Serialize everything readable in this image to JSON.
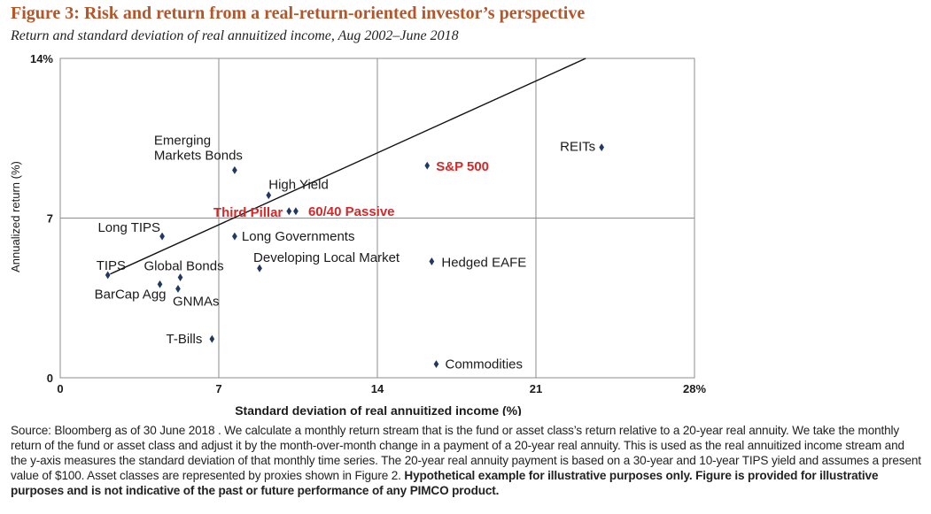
{
  "header": {
    "title": "Figure 3: Risk and return from a real-return-oriented investor’s perspective",
    "subtitle": "Return and standard deviation of real annuitized income, Aug 2002–June 2018"
  },
  "colors": {
    "title": "#b5562a",
    "marker": "#1f3864",
    "highlight_label": "#d62828",
    "grid": "#8c8c8c",
    "axis_text": "#1a1a1a"
  },
  "chart_data": {
    "type": "scatter",
    "xlabel": "Standard deviation of real annuitized income (%)",
    "ylabel": "Annualized return (%)",
    "xlim": [
      0,
      28
    ],
    "ylim": [
      0,
      14
    ],
    "x_ticks": [
      {
        "value": 0,
        "label": "0"
      },
      {
        "value": 7,
        "label": "7"
      },
      {
        "value": 14,
        "label": "14"
      },
      {
        "value": 21,
        "label": "21"
      },
      {
        "value": 28,
        "label": "28%"
      }
    ],
    "y_ticks": [
      {
        "value": 0,
        "label": "0"
      },
      {
        "value": 7,
        "label": "7"
      },
      {
        "value": 14,
        "label": "14%"
      }
    ],
    "grid": true,
    "trend_line": {
      "x": [
        2.1,
        23.2
      ],
      "y": [
        4.5,
        14.0
      ]
    },
    "points": [
      {
        "name": "REITs",
        "x": 23.9,
        "y": 10.1,
        "highlight": false,
        "label_anchor": "end",
        "label_dx": -7,
        "label_dy": 4
      },
      {
        "name": "S&P 500",
        "x": 16.2,
        "y": 9.3,
        "highlight": true,
        "label_anchor": "start",
        "label_dx": 10,
        "label_dy": 6
      },
      {
        "name": "Emerging Markets Bonds",
        "x": 7.7,
        "y": 9.1,
        "highlight": false,
        "label_anchor": "start",
        "label_dx": -91,
        "label_dy": -29,
        "label_lines": [
          "Emerging",
          "Markets Bonds"
        ]
      },
      {
        "name": "High Yield",
        "x": 9.2,
        "y": 8.0,
        "highlight": false,
        "label_anchor": "start",
        "label_dx": 0,
        "label_dy": -7
      },
      {
        "name": "Third Pillar",
        "x": 10.1,
        "y": 7.3,
        "highlight": true,
        "label_anchor": "end",
        "label_dx": -7,
        "label_dy": 6
      },
      {
        "name": "60/40 Passive",
        "x": 10.4,
        "y": 7.3,
        "highlight": true,
        "label_anchor": "start",
        "label_dx": 14,
        "label_dy": 5
      },
      {
        "name": "Long TIPS",
        "x": 4.5,
        "y": 6.2,
        "highlight": false,
        "label_anchor": "end",
        "label_dx": -2,
        "label_dy": -5
      },
      {
        "name": "Long Governments",
        "x": 7.7,
        "y": 6.2,
        "highlight": false,
        "label_anchor": "start",
        "label_dx": 8,
        "label_dy": 5
      },
      {
        "name": "Developing Local Market",
        "x": 8.8,
        "y": 4.8,
        "highlight": false,
        "label_anchor": "start",
        "label_dx": -7,
        "label_dy": -7
      },
      {
        "name": "Hedged EAFE",
        "x": 16.4,
        "y": 5.1,
        "highlight": false,
        "label_anchor": "start",
        "label_dx": 11,
        "label_dy": 6
      },
      {
        "name": "TIPS",
        "x": 2.1,
        "y": 4.5,
        "highlight": false,
        "label_anchor": "start",
        "label_dx": -13,
        "label_dy": -6
      },
      {
        "name": "Global Bonds",
        "x": 5.3,
        "y": 4.4,
        "highlight": false,
        "label_anchor": "start",
        "label_dx": -41,
        "label_dy": -8
      },
      {
        "name": "BarCap Agg",
        "x": 4.4,
        "y": 4.1,
        "highlight": false,
        "label_anchor": "end",
        "label_dx": 7,
        "label_dy": 16
      },
      {
        "name": "GNMAs",
        "x": 5.2,
        "y": 3.9,
        "highlight": false,
        "label_anchor": "start",
        "label_dx": -6,
        "label_dy": 19
      },
      {
        "name": "T-Bills",
        "x": 6.7,
        "y": 1.7,
        "highlight": false,
        "label_anchor": "end",
        "label_dx": -11,
        "label_dy": 5
      },
      {
        "name": "Commodities",
        "x": 16.6,
        "y": 0.6,
        "highlight": false,
        "label_anchor": "start",
        "label_dx": 10,
        "label_dy": 5
      }
    ]
  },
  "source": {
    "text": "Source: Bloomberg as of 30 June 2018 . We calculate a monthly return stream that is the fund or asset class’s return relative to a 20-year real annuity. We take the monthly return of the fund or asset class and adjust it by the month-over-month change in a payment of a 20-year real annuity. This is used as the real annuitized income stream and the y-axis measures the standard deviation of that monthly time series. The 20-year real annuity payment is based on a 30-year and 10-year TIPS yield and assumes a present value of $100. Asset classes are represented by proxies shown in Figure 2. ",
    "bold_text": "Hypothetical example for illustrative purposes only. Figure is provided for illustrative purposes and is not indicative of the past or future performance of any PIMCO product."
  }
}
